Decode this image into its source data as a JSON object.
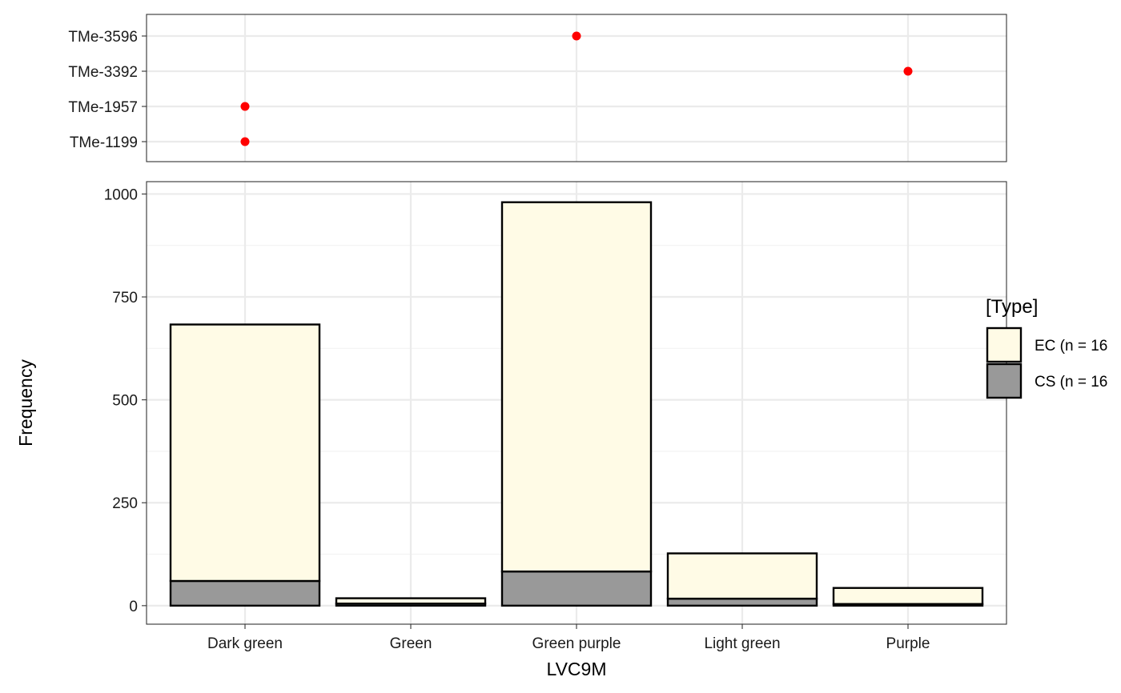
{
  "chart_data": [
    {
      "type": "scatter",
      "x_categories": [
        "Dark green",
        "Green purple",
        "Purple"
      ],
      "y_categories": [
        "TMe-1199",
        "TMe-1957",
        "TMe-3392",
        "TMe-3596"
      ],
      "points": [
        {
          "x": "Dark green",
          "y": "TMe-1199"
        },
        {
          "x": "Dark green",
          "y": "TMe-1957"
        },
        {
          "x": "Green purple",
          "y": "TMe-3596"
        },
        {
          "x": "Purple",
          "y": "TMe-3392"
        }
      ],
      "point_color": "#ff0000",
      "grid": true
    },
    {
      "type": "bar",
      "stacked": true,
      "categories": [
        "Dark green",
        "Green",
        "Green purple",
        "Light green",
        "Purple"
      ],
      "series": [
        {
          "name": "CS (n = 16",
          "values": [
            60,
            5,
            83,
            17,
            4
          ],
          "color": "#999999"
        },
        {
          "name": "EC (n = 16",
          "values": [
            623,
            13,
            897,
            110,
            39
          ],
          "color": "#fffbe6"
        }
      ],
      "xlabel": "LVC9M",
      "ylabel": "Frequency",
      "ylim": [
        -45,
        1030
      ],
      "yticks": [
        0,
        250,
        500,
        750,
        1000
      ],
      "legend": {
        "title": "[Type]",
        "placement": "right",
        "entries": [
          {
            "label": "EC (n = 16",
            "color": "#fffbe6"
          },
          {
            "label": "CS (n = 16",
            "color": "#999999"
          }
        ]
      },
      "grid": true
    }
  ]
}
